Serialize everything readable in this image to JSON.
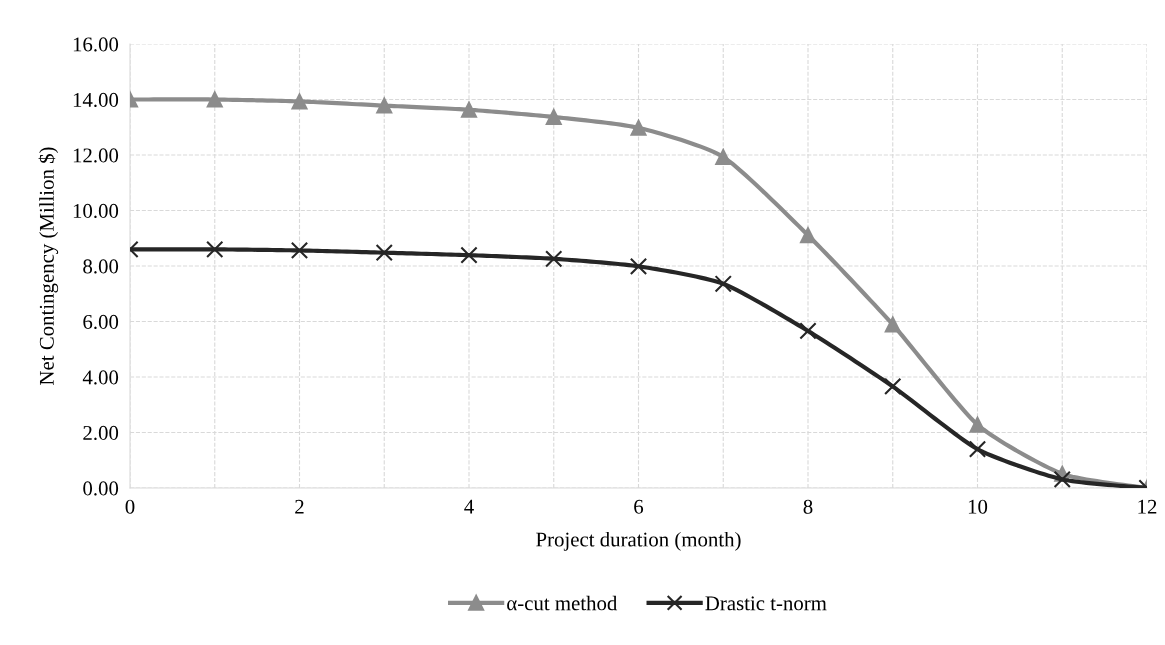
{
  "chart_data": {
    "type": "line",
    "xlabel": "Project duration (month)",
    "ylabel": "Net Contingency (Million $)",
    "x": [
      0,
      1,
      2,
      3,
      4,
      5,
      6,
      7,
      8,
      9,
      10,
      11,
      12
    ],
    "series": [
      {
        "name": "α-cut method",
        "color": "#8c8c8c",
        "marker": "triangle",
        "values": [
          14.0,
          14.0,
          13.93,
          13.78,
          13.63,
          13.37,
          12.98,
          11.93,
          9.11,
          5.89,
          2.28,
          0.51,
          0.0
        ]
      },
      {
        "name": "Drastic t-norm",
        "color": "#262626",
        "marker": "cross",
        "values": [
          8.6,
          8.6,
          8.56,
          8.48,
          8.39,
          8.26,
          7.99,
          7.36,
          5.66,
          3.66,
          1.4,
          0.31,
          0.0
        ]
      }
    ],
    "xlim": [
      0,
      12
    ],
    "xticks": [
      0,
      {
        "value": 1,
        "label": null
      },
      2,
      {
        "value": 3,
        "label": null
      },
      4,
      {
        "value": 5,
        "label": null
      },
      6,
      {
        "value": 7,
        "label": null
      },
      8,
      {
        "value": 9,
        "label": null
      },
      10,
      {
        "value": 11,
        "label": null
      },
      12
    ],
    "ylim": [
      0,
      16
    ],
    "yticks": [
      {
        "value": 0,
        "label": "0.00"
      },
      {
        "value": 2,
        "label": "2.00"
      },
      {
        "value": 4,
        "label": "4.00"
      },
      {
        "value": 6,
        "label": "6.00"
      },
      {
        "value": 8,
        "label": "8.00"
      },
      {
        "value": 10,
        "label": "10.00"
      },
      {
        "value": 12,
        "label": "12.00"
      },
      {
        "value": 14,
        "label": "14.00"
      },
      {
        "value": 16,
        "label": "16.00"
      }
    ],
    "grid": true,
    "legend": "bottom",
    "line_style": "solid"
  }
}
